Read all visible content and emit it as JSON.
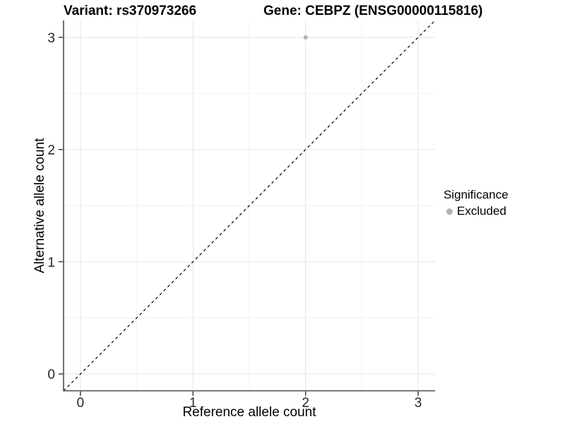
{
  "titles": {
    "left": "Variant: rs370973266",
    "right": "Gene: CEBPZ (ENSG00000115816)"
  },
  "chart_data": {
    "type": "scatter",
    "xlabel": "Reference allele count",
    "ylabel": "Alternative allele count",
    "xlim": [
      -0.15,
      3.15
    ],
    "ylim": [
      -0.15,
      3.15
    ],
    "xticks": [
      0,
      1,
      2,
      3
    ],
    "yticks": [
      0,
      1,
      2,
      3
    ],
    "minor_gridlines": [
      0.5,
      1.5,
      2.5
    ],
    "grid": "on",
    "identity_line": {
      "style": "dashed",
      "color": "#000000",
      "from": -0.15,
      "to": 3.15
    },
    "series": [
      {
        "name": "Excluded",
        "marker": "circle",
        "color": "#b3b3b3",
        "points": [
          [
            2,
            3
          ]
        ]
      }
    ],
    "legend": {
      "title": "Significance",
      "position": "right",
      "items": [
        {
          "label": "Excluded",
          "color": "#b3b3b3"
        }
      ]
    }
  },
  "colors": {
    "grid_major": "#e4e4e4",
    "grid_minor": "#f2f2f2",
    "axis_line": "#4d4d4d",
    "tick_mark": "#333333",
    "tick_text": "#262626",
    "background": "#ffffff"
  }
}
